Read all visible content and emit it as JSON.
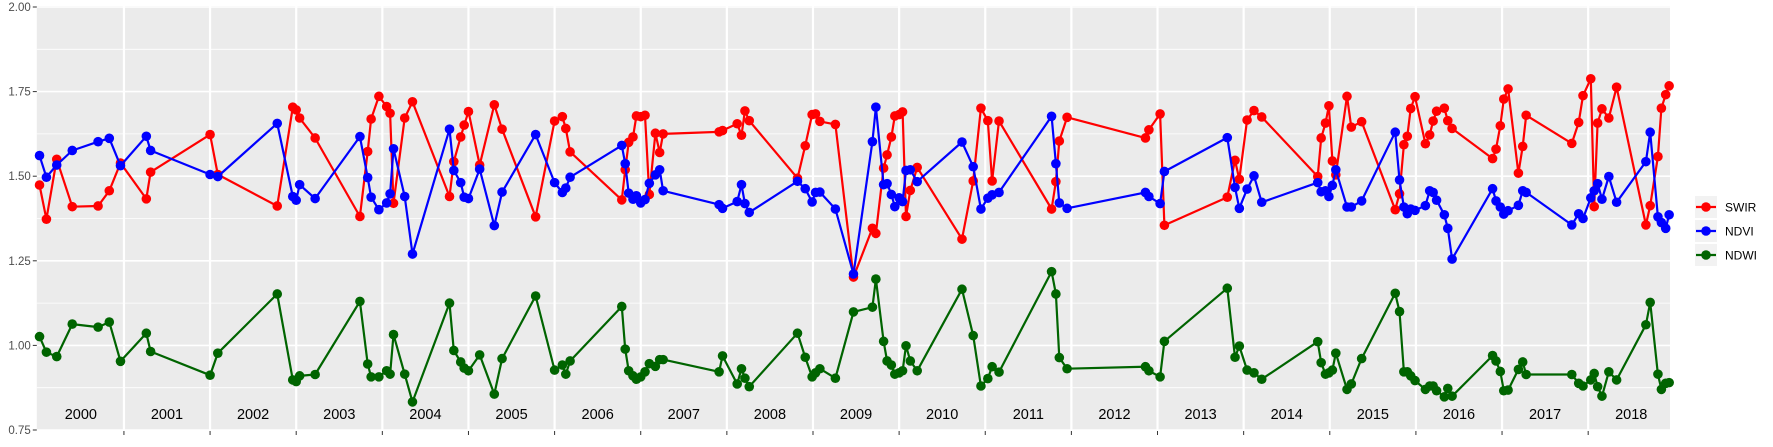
{
  "chart_data": {
    "type": "line",
    "title": "",
    "xlabel": "",
    "ylabel": "",
    "xlim": [
      2000.0,
      2018.95
    ],
    "ylim": [
      0.75,
      2.0
    ],
    "yticks": [
      "0.75",
      "1.00",
      "1.25",
      "1.50",
      "1.75",
      "2.00"
    ],
    "xticks": [
      2001,
      2002,
      2003,
      2004,
      2005,
      2006,
      2007,
      2008,
      2009,
      2010,
      2011,
      2012,
      2013,
      2014,
      2015,
      2016,
      2017,
      2018
    ],
    "year_labels": [
      "2000",
      "2001",
      "2002",
      "2003",
      "2004",
      "2005",
      "2006",
      "2007",
      "2008",
      "2009",
      "2010",
      "2011",
      "2012",
      "2013",
      "2014",
      "2015",
      "2016",
      "2017",
      "2018"
    ],
    "grid": true,
    "legend_position": "right",
    "x": [
      2000.02,
      2000.1,
      2000.22,
      2000.4,
      2000.7,
      2000.83,
      2000.96,
      2001.26,
      2001.31,
      2002.0,
      2002.09,
      2002.78,
      2002.96,
      2003.0,
      2003.04,
      2003.22,
      2003.74,
      2003.83,
      2003.87,
      2003.96,
      2004.05,
      2004.09,
      2004.13,
      2004.26,
      2004.35,
      2004.78,
      2004.83,
      2004.91,
      2004.95,
      2005.0,
      2005.13,
      2005.3,
      2005.39,
      2005.78,
      2006.0,
      2006.09,
      2006.13,
      2006.18,
      2006.78,
      2006.82,
      2006.86,
      2006.91,
      2006.95,
      2007.0,
      2007.05,
      2007.1,
      2007.17,
      2007.22,
      2007.26,
      2007.91,
      2007.95,
      2008.12,
      2008.17,
      2008.21,
      2008.26,
      2008.82,
      2008.91,
      2008.99,
      2009.03,
      2009.08,
      2009.26,
      2009.47,
      2009.69,
      2009.73,
      2009.82,
      2009.86,
      2009.91,
      2009.95,
      2010.0,
      2010.04,
      2010.08,
      2010.13,
      2010.21,
      2010.73,
      2010.86,
      2010.95,
      2011.03,
      2011.08,
      2011.16,
      2011.77,
      2011.82,
      2011.86,
      2011.95,
      2012.86,
      2012.9,
      2013.03,
      2013.08,
      2013.81,
      2013.9,
      2013.95,
      2014.04,
      2014.12,
      2014.21,
      2014.86,
      2014.9,
      2014.95,
      2014.99,
      2015.03,
      2015.07,
      2015.2,
      2015.25,
      2015.37,
      2015.76,
      2015.81,
      2015.86,
      2015.9,
      2015.94,
      2015.99,
      2016.11,
      2016.16,
      2016.2,
      2016.24,
      2016.33,
      2016.37,
      2016.42,
      2016.89,
      2016.93,
      2016.98,
      2017.02,
      2017.07,
      2017.19,
      2017.24,
      2017.28,
      2017.81,
      2017.89,
      2017.94,
      2018.03,
      2018.07,
      2018.11,
      2018.16,
      2018.24,
      2018.33,
      2018.67,
      2018.72,
      2018.81,
      2018.85,
      2018.9,
      2018.94
    ],
    "series": [
      {
        "name": "SWIR",
        "color": "#FF0000",
        "values": [
          1.474,
          1.373,
          1.55,
          1.41,
          1.412,
          1.457,
          1.539,
          1.433,
          1.512,
          1.623,
          1.505,
          1.412,
          1.704,
          1.696,
          1.672,
          1.613,
          1.381,
          1.573,
          1.669,
          1.736,
          1.706,
          1.686,
          1.42,
          1.672,
          1.72,
          1.44,
          1.543,
          1.616,
          1.651,
          1.691,
          1.533,
          1.711,
          1.639,
          1.38,
          1.663,
          1.676,
          1.641,
          1.572,
          1.43,
          1.519,
          1.6,
          1.616,
          1.678,
          1.676,
          1.68,
          1.446,
          1.627,
          1.57,
          1.625,
          1.631,
          1.635,
          1.655,
          1.621,
          1.693,
          1.664,
          1.494,
          1.59,
          1.682,
          1.684,
          1.662,
          1.653,
          1.202,
          1.346,
          1.331,
          1.524,
          1.563,
          1.616,
          1.678,
          1.682,
          1.69,
          1.381,
          1.458,
          1.526,
          1.314,
          1.486,
          1.701,
          1.664,
          1.486,
          1.663,
          1.403,
          1.484,
          1.604,
          1.674,
          1.613,
          1.637,
          1.684,
          1.355,
          1.438,
          1.547,
          1.491,
          1.666,
          1.694,
          1.675,
          1.499,
          1.613,
          1.657,
          1.708,
          1.545,
          1.504,
          1.736,
          1.645,
          1.661,
          1.401,
          1.448,
          1.593,
          1.618,
          1.7,
          1.735,
          1.596,
          1.622,
          1.663,
          1.692,
          1.701,
          1.664,
          1.641,
          1.552,
          1.58,
          1.649,
          1.728,
          1.758,
          1.509,
          1.588,
          1.68,
          1.597,
          1.659,
          1.738,
          1.788,
          1.41,
          1.657,
          1.699,
          1.672,
          1.763,
          1.356,
          1.413,
          1.558,
          1.701,
          1.741,
          1.767
        ]
      },
      {
        "name": "NDVI",
        "color": "#0000FF",
        "values": [
          1.561,
          1.497,
          1.533,
          1.576,
          1.602,
          1.612,
          1.531,
          1.618,
          1.576,
          1.505,
          1.499,
          1.656,
          1.44,
          1.429,
          1.475,
          1.434,
          1.617,
          1.496,
          1.438,
          1.401,
          1.421,
          1.448,
          1.581,
          1.44,
          1.27,
          1.639,
          1.517,
          1.481,
          1.438,
          1.434,
          1.521,
          1.354,
          1.453,
          1.623,
          1.481,
          1.452,
          1.465,
          1.497,
          1.591,
          1.537,
          1.45,
          1.432,
          1.442,
          1.421,
          1.431,
          1.479,
          1.504,
          1.519,
          1.457,
          1.416,
          1.405,
          1.425,
          1.475,
          1.419,
          1.393,
          1.485,
          1.463,
          1.424,
          1.452,
          1.453,
          1.403,
          1.211,
          1.602,
          1.704,
          1.475,
          1.478,
          1.446,
          1.41,
          1.436,
          1.425,
          1.517,
          1.519,
          1.484,
          1.601,
          1.528,
          1.403,
          1.435,
          1.445,
          1.452,
          1.677,
          1.537,
          1.421,
          1.405,
          1.452,
          1.44,
          1.419,
          1.514,
          1.614,
          1.467,
          1.405,
          1.462,
          1.501,
          1.423,
          1.481,
          1.454,
          1.457,
          1.44,
          1.473,
          1.519,
          1.409,
          1.409,
          1.427,
          1.63,
          1.489,
          1.409,
          1.389,
          1.403,
          1.399,
          1.413,
          1.457,
          1.452,
          1.429,
          1.386,
          1.346,
          1.255,
          1.463,
          1.427,
          1.409,
          1.388,
          1.398,
          1.414,
          1.457,
          1.452,
          1.356,
          1.389,
          1.375,
          1.436,
          1.457,
          1.478,
          1.432,
          1.499,
          1.423,
          1.543,
          1.63,
          1.38,
          1.363,
          1.346,
          1.386
        ]
      },
      {
        "name": "NDWI",
        "color": "#006400",
        "values": [
          1.026,
          0.98,
          0.967,
          1.063,
          1.054,
          1.069,
          0.953,
          1.036,
          0.982,
          0.912,
          0.977,
          1.152,
          0.898,
          0.893,
          0.91,
          0.914,
          1.13,
          0.945,
          0.907,
          0.907,
          0.925,
          0.915,
          1.032,
          0.915,
          0.833,
          1.125,
          0.985,
          0.951,
          0.933,
          0.925,
          0.972,
          0.856,
          0.961,
          1.146,
          0.927,
          0.942,
          0.915,
          0.954,
          1.115,
          0.989,
          0.925,
          0.91,
          0.9,
          0.907,
          0.922,
          0.946,
          0.938,
          0.958,
          0.958,
          0.922,
          0.969,
          0.886,
          0.931,
          0.903,
          0.878,
          1.036,
          0.965,
          0.907,
          0.919,
          0.931,
          0.903,
          1.099,
          1.113,
          1.196,
          1.012,
          0.954,
          0.942,
          0.915,
          0.919,
          0.925,
          0.999,
          0.954,
          0.925,
          1.166,
          1.029,
          0.88,
          0.902,
          0.937,
          0.921,
          1.218,
          1.152,
          0.964,
          0.931,
          0.937,
          0.925,
          0.907,
          1.012,
          1.169,
          0.965,
          0.998,
          0.927,
          0.919,
          0.9,
          1.011,
          0.949,
          0.915,
          0.919,
          0.927,
          0.977,
          0.87,
          0.886,
          0.961,
          1.154,
          1.1,
          0.922,
          0.922,
          0.91,
          0.896,
          0.87,
          0.88,
          0.88,
          0.866,
          0.848,
          0.873,
          0.85,
          0.97,
          0.954,
          0.923,
          0.866,
          0.868,
          0.929,
          0.951,
          0.914,
          0.914,
          0.888,
          0.88,
          0.898,
          0.917,
          0.878,
          0.85,
          0.922,
          0.898,
          1.061,
          1.127,
          0.915,
          0.87,
          0.888,
          0.89
        ]
      }
    ]
  }
}
